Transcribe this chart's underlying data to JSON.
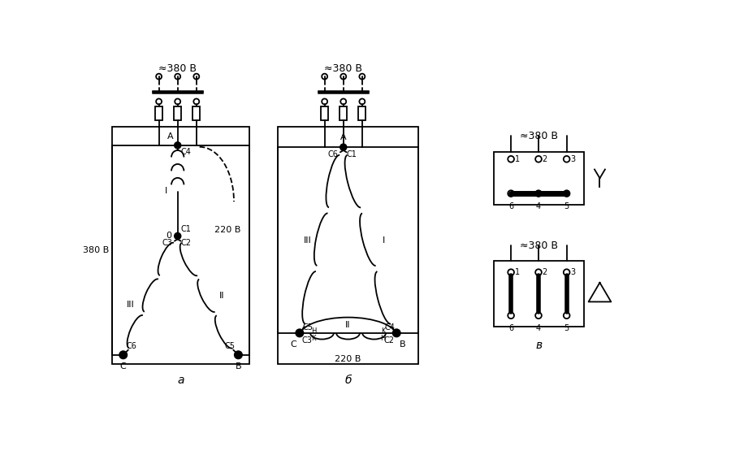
{
  "bg_color": "#ffffff",
  "line_color": "#000000",
  "fig_width": 9.0,
  "fig_height": 5.6,
  "label_a": "а",
  "label_b": "б",
  "label_v": "в",
  "voltage_380": "≈380 В",
  "voltage_220": "220 В",
  "voltage_380_plain": "380 В"
}
